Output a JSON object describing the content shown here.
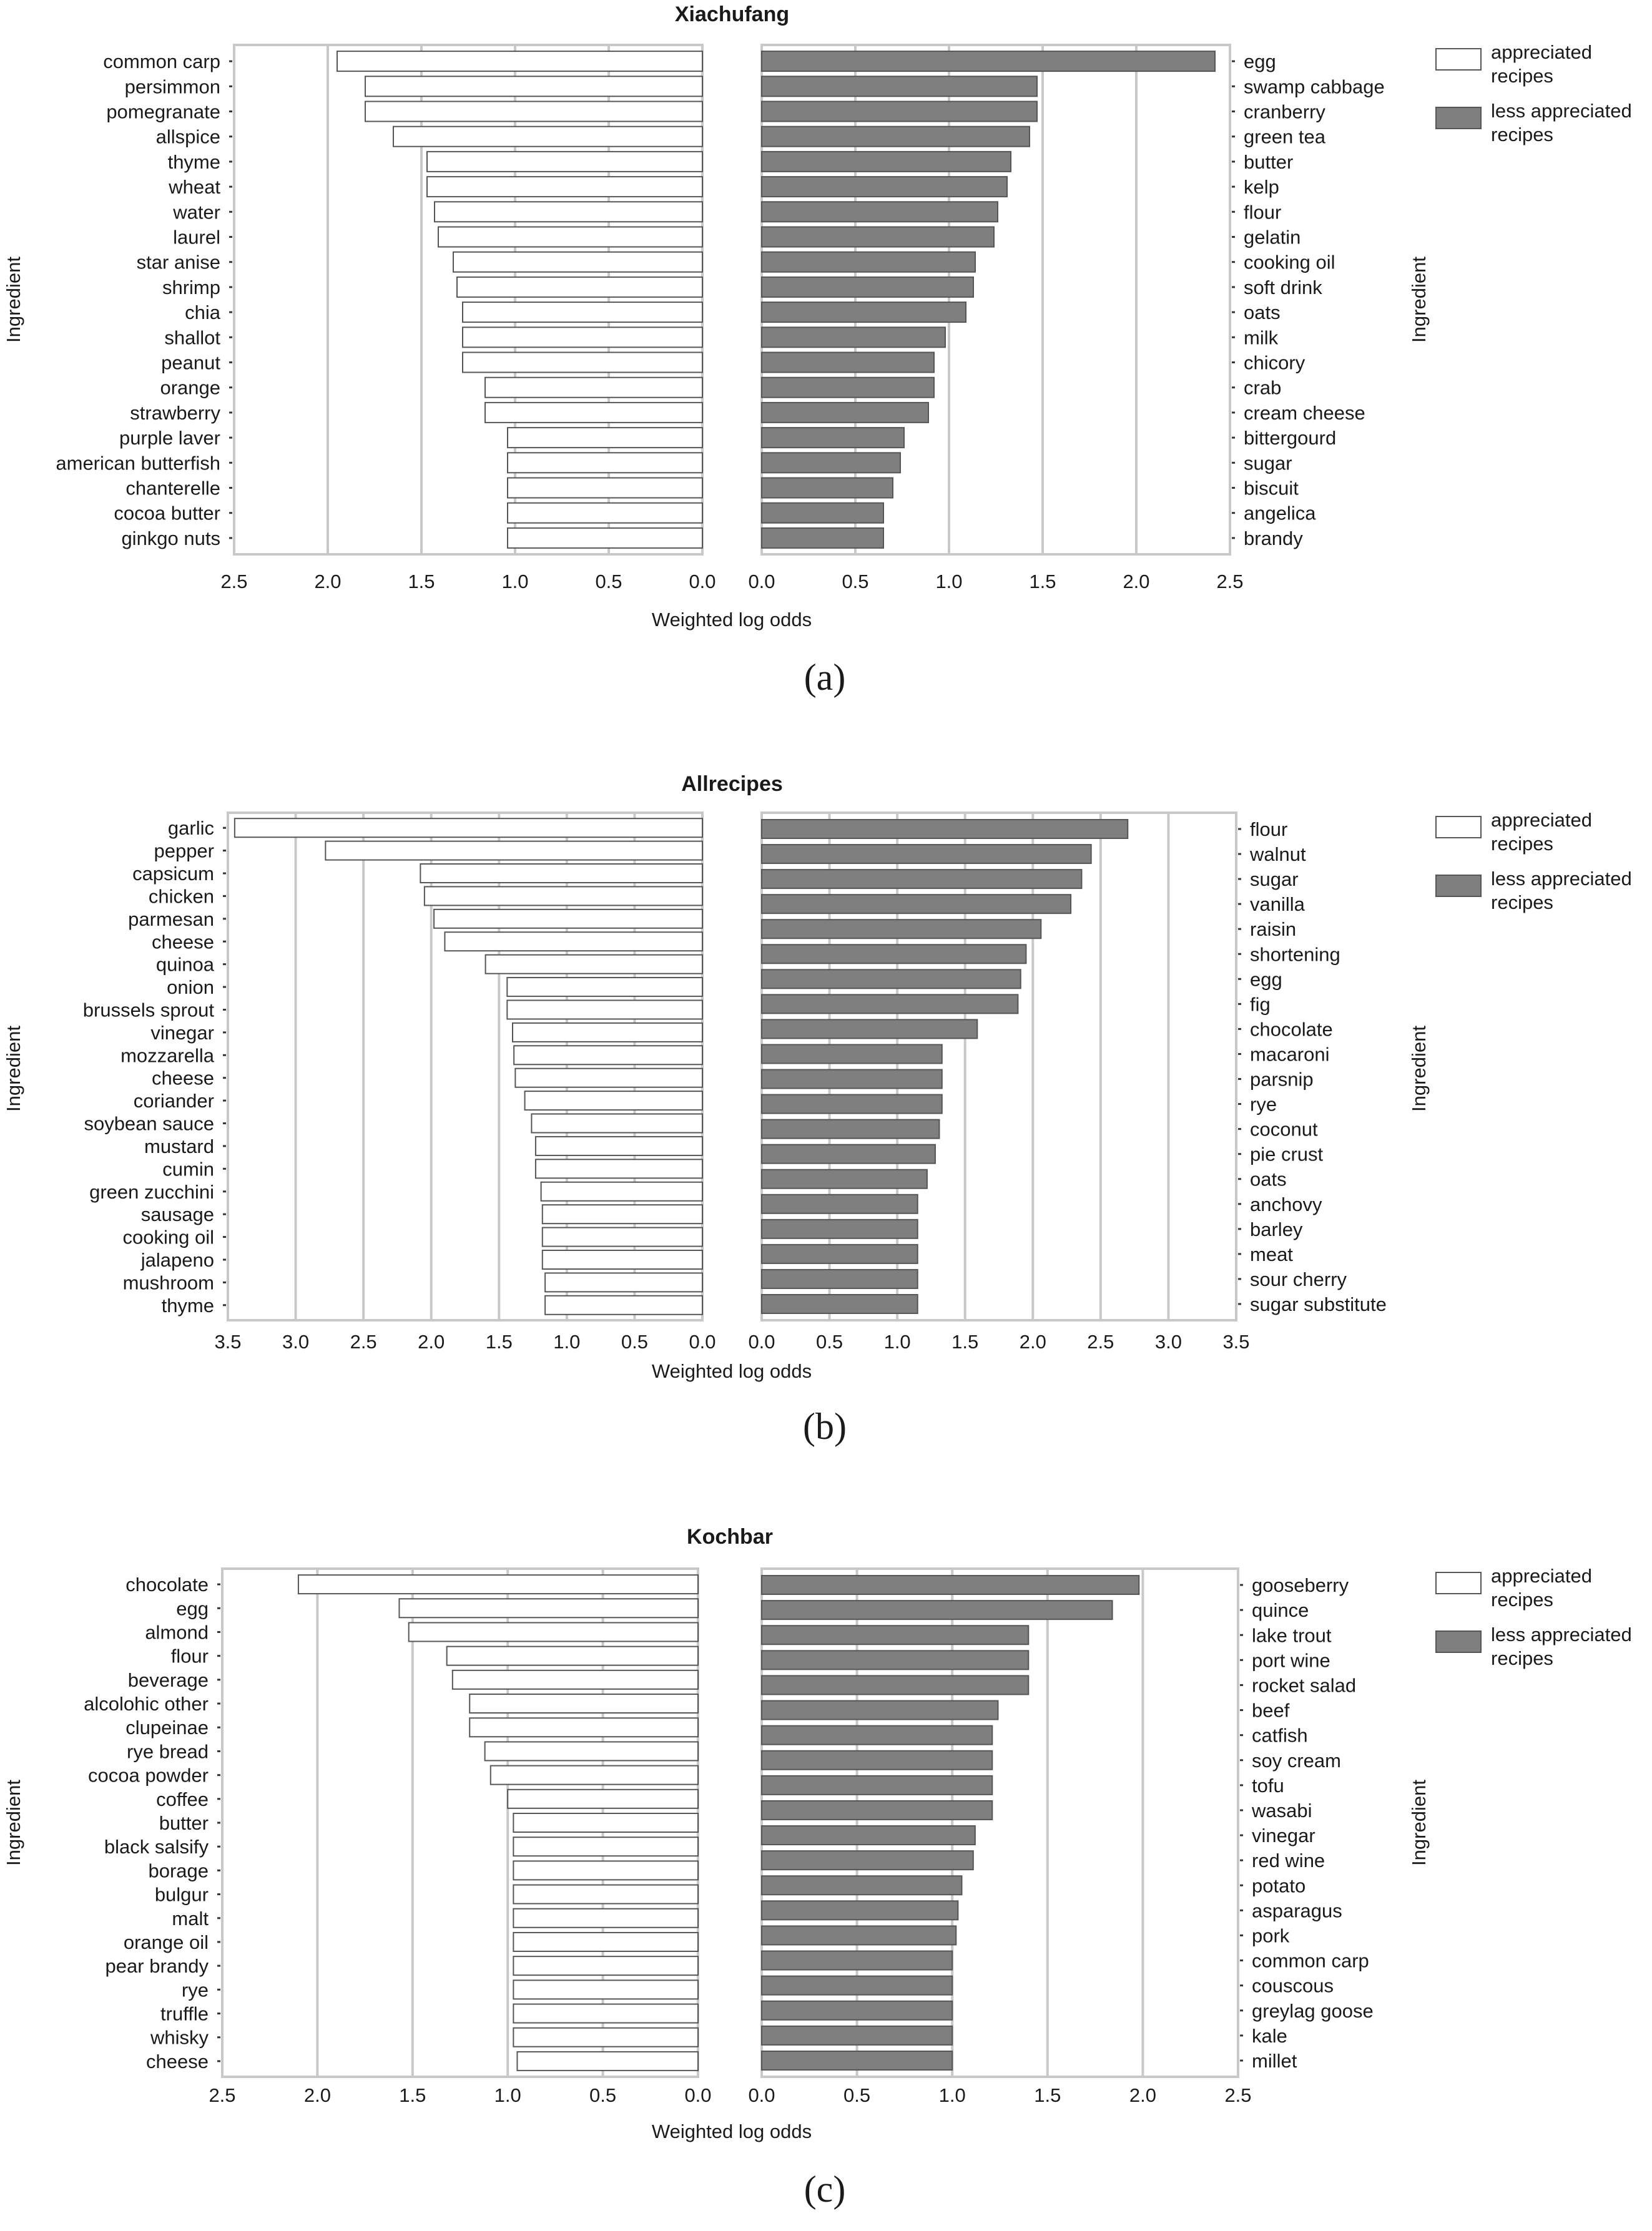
{
  "colors": {
    "appreciated": "#ffffff",
    "less_appreciated": "#7f7f7f",
    "bar_edge": "#555555",
    "grid": "#c8c8c8"
  },
  "legend": {
    "appreciated": [
      "appreciated",
      "recipes"
    ],
    "less_appreciated": [
      "less appreciated",
      "recipes"
    ]
  },
  "chart_data": [
    {
      "type": "bar",
      "title": "Xiachufang",
      "panel_label": "a",
      "xlabel": "Weighted log odds",
      "ylabel": "Ingredient",
      "xlim": [
        0,
        2.5
      ],
      "ticks": [
        "0.0",
        "0.5",
        "1.0",
        "1.5",
        "2.0",
        "2.5"
      ],
      "appreciated": {
        "categories": [
          "common carp",
          "persimmon",
          "pomegranate",
          "allspice",
          "thyme",
          "wheat",
          "water",
          "laurel",
          "star anise",
          "shrimp",
          "chia",
          "shallot",
          "peanut",
          "orange",
          "strawberry",
          "purple laver",
          "american butterfish",
          "chanterelle",
          "cocoa butter",
          "ginkgo nuts"
        ],
        "values": [
          1.95,
          1.8,
          1.8,
          1.65,
          1.47,
          1.47,
          1.43,
          1.41,
          1.33,
          1.31,
          1.28,
          1.28,
          1.28,
          1.16,
          1.16,
          1.04,
          1.04,
          1.04,
          1.04,
          1.04
        ]
      },
      "less_appreciated": {
        "categories": [
          "egg",
          "swamp cabbage",
          "cranberry",
          "green tea",
          "butter",
          "kelp",
          "flour",
          "gelatin",
          "cooking oil",
          "soft drink",
          "oats",
          "milk",
          "chicory",
          "crab",
          "cream cheese",
          "bittergourd",
          "sugar",
          "biscuit",
          "angelica",
          "brandy"
        ],
        "values": [
          2.42,
          1.47,
          1.47,
          1.43,
          1.33,
          1.31,
          1.26,
          1.24,
          1.14,
          1.13,
          1.09,
          0.98,
          0.92,
          0.92,
          0.89,
          0.76,
          0.74,
          0.7,
          0.65,
          0.65
        ]
      }
    },
    {
      "type": "bar",
      "title": "Allrecipes",
      "panel_label": "b",
      "xlabel": "Weighted log odds",
      "ylabel": "Ingredient",
      "xlim": [
        0,
        3.5
      ],
      "ticks": [
        "0.0",
        "0.5",
        "1.0",
        "1.5",
        "2.0",
        "2.5",
        "3.0",
        "3.5"
      ],
      "appreciated": {
        "categories": [
          "garlic",
          "pepper",
          "capsicum",
          "chicken",
          "parmesan",
          "cheese",
          "quinoa",
          "onion",
          "brussels sprout",
          "vinegar",
          "mozzarella",
          "cheese",
          "coriander",
          "soybean sauce",
          "mustard",
          "cumin",
          "green zucchini",
          "sausage",
          "cooking oil",
          "jalapeno",
          "mushroom",
          "thyme"
        ],
        "values": [
          3.45,
          2.78,
          2.08,
          2.05,
          1.98,
          1.9,
          1.6,
          1.44,
          1.44,
          1.4,
          1.39,
          1.38,
          1.31,
          1.26,
          1.23,
          1.23,
          1.19,
          1.18,
          1.18,
          1.18,
          1.16,
          1.16
        ]
      },
      "less_appreciated": {
        "categories": [
          "flour",
          "walnut",
          "sugar",
          "vanilla",
          "raisin",
          "shortening",
          "egg",
          "fig",
          "chocolate",
          "macaroni",
          "parsnip",
          "rye",
          "coconut",
          "pie crust",
          "oats",
          "anchovy",
          "barley",
          "meat",
          "sour cherry",
          "sugar substitute"
        ],
        "values": [
          2.7,
          2.43,
          2.36,
          2.28,
          2.06,
          1.95,
          1.91,
          1.89,
          1.59,
          1.33,
          1.33,
          1.33,
          1.31,
          1.28,
          1.22,
          1.15,
          1.15,
          1.15,
          1.15,
          1.15
        ]
      }
    },
    {
      "type": "bar",
      "title": "Kochbar",
      "panel_label": "c",
      "xlabel": "Weighted log odds",
      "ylabel": "Ingredient",
      "xlim": [
        0,
        2.5
      ],
      "ticks": [
        "0.0",
        "0.5",
        "1.0",
        "1.5",
        "2.0",
        "2.5"
      ],
      "appreciated": {
        "categories": [
          "chocolate",
          "egg",
          "almond",
          "flour",
          "beverage",
          "alcolohic other",
          "clupeinae",
          "rye bread",
          "cocoa powder",
          "coffee",
          "butter",
          "black salsify",
          "borage",
          "bulgur",
          "malt",
          "orange oil",
          "pear brandy",
          "rye",
          "truffle",
          "whisky",
          "cheese"
        ],
        "values": [
          2.1,
          1.57,
          1.52,
          1.32,
          1.29,
          1.2,
          1.2,
          1.12,
          1.09,
          1.0,
          0.97,
          0.97,
          0.97,
          0.97,
          0.97,
          0.97,
          0.97,
          0.97,
          0.97,
          0.97,
          0.95
        ]
      },
      "less_appreciated": {
        "categories": [
          "gooseberry",
          "quince",
          "lake trout",
          "port wine",
          "rocket salad",
          "beef",
          "catfish",
          "soy cream",
          "tofu",
          "wasabi",
          "vinegar",
          "red wine",
          "potato",
          "asparagus",
          "pork",
          "common carp",
          "couscous",
          "greylag goose",
          "kale",
          "millet"
        ],
        "values": [
          1.98,
          1.84,
          1.4,
          1.4,
          1.4,
          1.24,
          1.21,
          1.21,
          1.21,
          1.21,
          1.12,
          1.11,
          1.05,
          1.03,
          1.02,
          1.0,
          1.0,
          1.0,
          1.0,
          1.0
        ]
      }
    }
  ]
}
